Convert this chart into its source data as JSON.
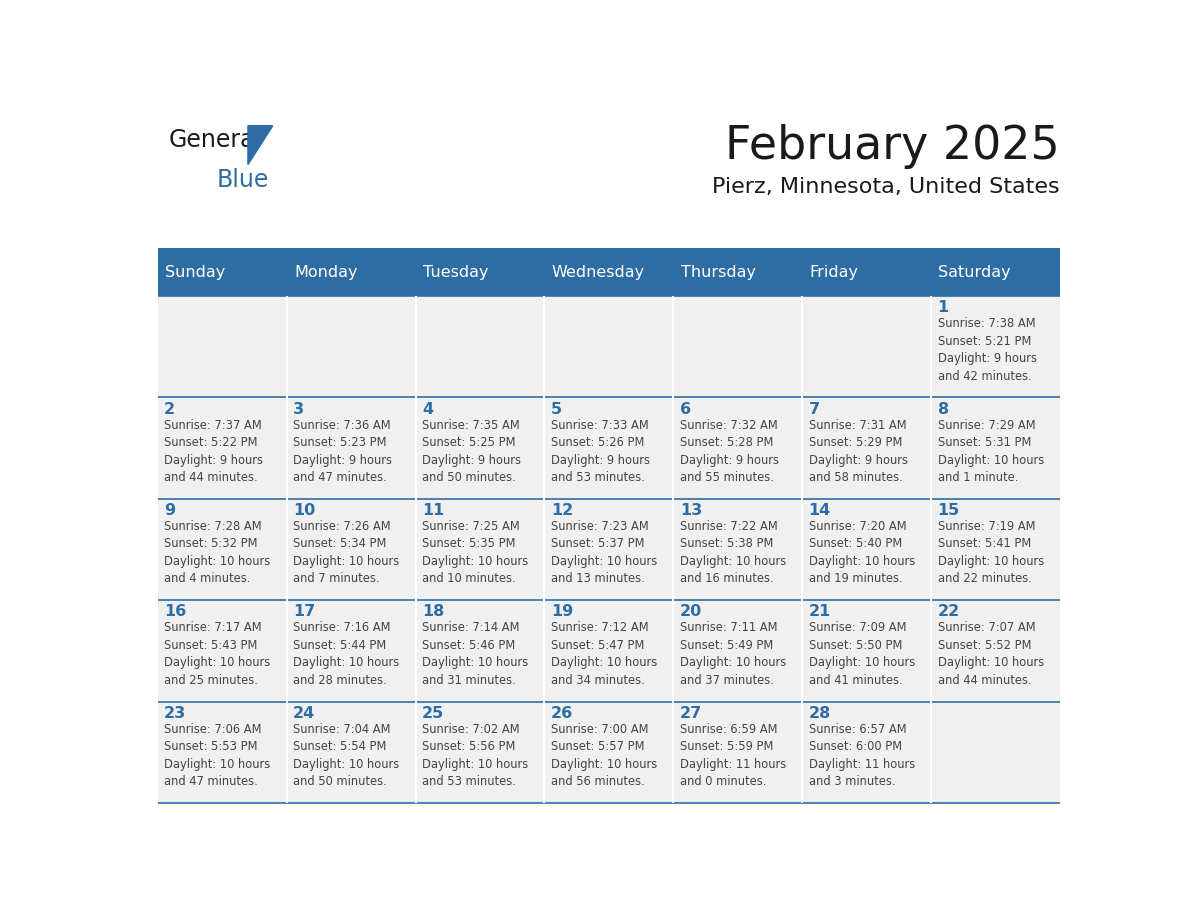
{
  "title": "February 2025",
  "subtitle": "Pierz, Minnesota, United States",
  "header_bg": "#2E6DA4",
  "header_text": "#FFFFFF",
  "cell_bg": "#F0F0F0",
  "day_number_color": "#2E6DA4",
  "cell_text_color": "#444444",
  "line_color": "#2E6DA4",
  "days_of_week": [
    "Sunday",
    "Monday",
    "Tuesday",
    "Wednesday",
    "Thursday",
    "Friday",
    "Saturday"
  ],
  "weeks": [
    [
      {
        "day": null,
        "info": null
      },
      {
        "day": null,
        "info": null
      },
      {
        "day": null,
        "info": null
      },
      {
        "day": null,
        "info": null
      },
      {
        "day": null,
        "info": null
      },
      {
        "day": null,
        "info": null
      },
      {
        "day": 1,
        "info": "Sunrise: 7:38 AM\nSunset: 5:21 PM\nDaylight: 9 hours\nand 42 minutes."
      }
    ],
    [
      {
        "day": 2,
        "info": "Sunrise: 7:37 AM\nSunset: 5:22 PM\nDaylight: 9 hours\nand 44 minutes."
      },
      {
        "day": 3,
        "info": "Sunrise: 7:36 AM\nSunset: 5:23 PM\nDaylight: 9 hours\nand 47 minutes."
      },
      {
        "day": 4,
        "info": "Sunrise: 7:35 AM\nSunset: 5:25 PM\nDaylight: 9 hours\nand 50 minutes."
      },
      {
        "day": 5,
        "info": "Sunrise: 7:33 AM\nSunset: 5:26 PM\nDaylight: 9 hours\nand 53 minutes."
      },
      {
        "day": 6,
        "info": "Sunrise: 7:32 AM\nSunset: 5:28 PM\nDaylight: 9 hours\nand 55 minutes."
      },
      {
        "day": 7,
        "info": "Sunrise: 7:31 AM\nSunset: 5:29 PM\nDaylight: 9 hours\nand 58 minutes."
      },
      {
        "day": 8,
        "info": "Sunrise: 7:29 AM\nSunset: 5:31 PM\nDaylight: 10 hours\nand 1 minute."
      }
    ],
    [
      {
        "day": 9,
        "info": "Sunrise: 7:28 AM\nSunset: 5:32 PM\nDaylight: 10 hours\nand 4 minutes."
      },
      {
        "day": 10,
        "info": "Sunrise: 7:26 AM\nSunset: 5:34 PM\nDaylight: 10 hours\nand 7 minutes."
      },
      {
        "day": 11,
        "info": "Sunrise: 7:25 AM\nSunset: 5:35 PM\nDaylight: 10 hours\nand 10 minutes."
      },
      {
        "day": 12,
        "info": "Sunrise: 7:23 AM\nSunset: 5:37 PM\nDaylight: 10 hours\nand 13 minutes."
      },
      {
        "day": 13,
        "info": "Sunrise: 7:22 AM\nSunset: 5:38 PM\nDaylight: 10 hours\nand 16 minutes."
      },
      {
        "day": 14,
        "info": "Sunrise: 7:20 AM\nSunset: 5:40 PM\nDaylight: 10 hours\nand 19 minutes."
      },
      {
        "day": 15,
        "info": "Sunrise: 7:19 AM\nSunset: 5:41 PM\nDaylight: 10 hours\nand 22 minutes."
      }
    ],
    [
      {
        "day": 16,
        "info": "Sunrise: 7:17 AM\nSunset: 5:43 PM\nDaylight: 10 hours\nand 25 minutes."
      },
      {
        "day": 17,
        "info": "Sunrise: 7:16 AM\nSunset: 5:44 PM\nDaylight: 10 hours\nand 28 minutes."
      },
      {
        "day": 18,
        "info": "Sunrise: 7:14 AM\nSunset: 5:46 PM\nDaylight: 10 hours\nand 31 minutes."
      },
      {
        "day": 19,
        "info": "Sunrise: 7:12 AM\nSunset: 5:47 PM\nDaylight: 10 hours\nand 34 minutes."
      },
      {
        "day": 20,
        "info": "Sunrise: 7:11 AM\nSunset: 5:49 PM\nDaylight: 10 hours\nand 37 minutes."
      },
      {
        "day": 21,
        "info": "Sunrise: 7:09 AM\nSunset: 5:50 PM\nDaylight: 10 hours\nand 41 minutes."
      },
      {
        "day": 22,
        "info": "Sunrise: 7:07 AM\nSunset: 5:52 PM\nDaylight: 10 hours\nand 44 minutes."
      }
    ],
    [
      {
        "day": 23,
        "info": "Sunrise: 7:06 AM\nSunset: 5:53 PM\nDaylight: 10 hours\nand 47 minutes."
      },
      {
        "day": 24,
        "info": "Sunrise: 7:04 AM\nSunset: 5:54 PM\nDaylight: 10 hours\nand 50 minutes."
      },
      {
        "day": 25,
        "info": "Sunrise: 7:02 AM\nSunset: 5:56 PM\nDaylight: 10 hours\nand 53 minutes."
      },
      {
        "day": 26,
        "info": "Sunrise: 7:00 AM\nSunset: 5:57 PM\nDaylight: 10 hours\nand 56 minutes."
      },
      {
        "day": 27,
        "info": "Sunrise: 6:59 AM\nSunset: 5:59 PM\nDaylight: 11 hours\nand 0 minutes."
      },
      {
        "day": 28,
        "info": "Sunrise: 6:57 AM\nSunset: 6:00 PM\nDaylight: 11 hours\nand 3 minutes."
      },
      {
        "day": null,
        "info": null
      }
    ]
  ]
}
